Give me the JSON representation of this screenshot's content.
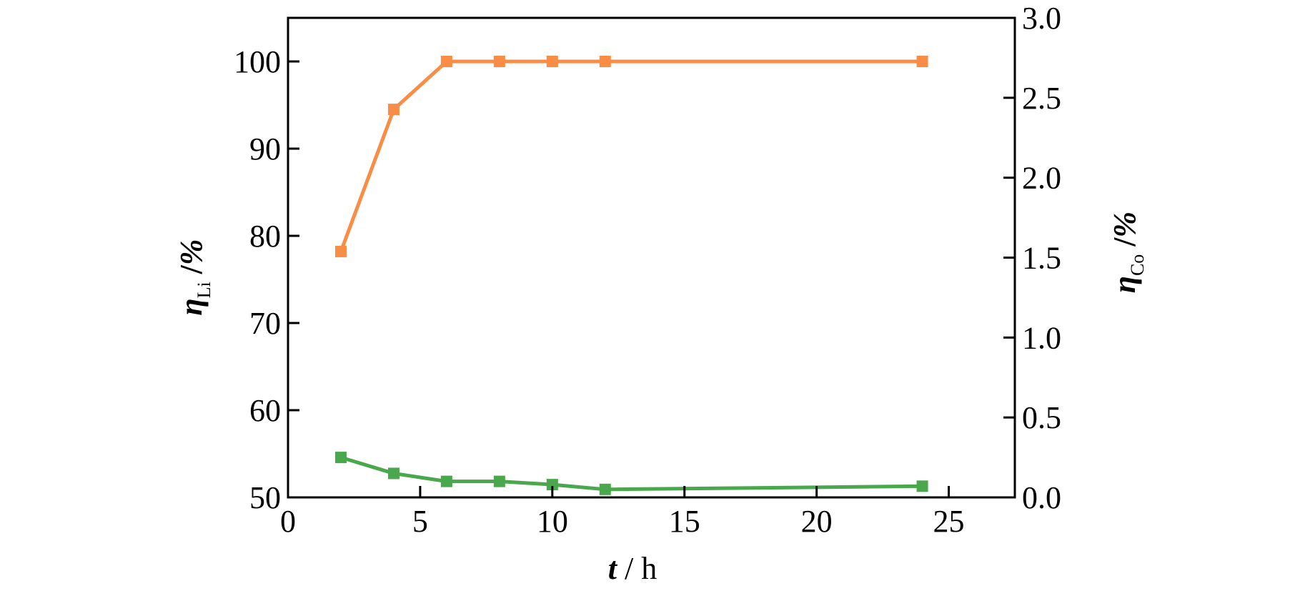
{
  "chart_data": {
    "type": "line",
    "title": "",
    "x": [
      2,
      4,
      6,
      8,
      10,
      12,
      24
    ],
    "xlim": [
      0,
      27.5
    ],
    "xticks": [
      0,
      5,
      10,
      15,
      20,
      25
    ],
    "xlabel": {
      "main": "t",
      "sep": " / ",
      "unit": "h"
    },
    "yleft": {
      "lim": [
        50,
        105
      ],
      "ticks": [
        50,
        60,
        70,
        80,
        90,
        100
      ],
      "label": {
        "symbol": "η",
        "sub": "Li",
        "sep": " /",
        "unit": "%"
      }
    },
    "yright": {
      "lim": [
        0,
        3.0
      ],
      "ticks": [
        "0.0",
        "0.5",
        "1.0",
        "1.5",
        "2.0",
        "2.5",
        "3.0"
      ],
      "label": {
        "symbol": "η",
        "sub": "Co",
        "sep": " /",
        "unit": "%"
      }
    },
    "series": [
      {
        "axis": "left",
        "color": "#f98d45",
        "marker": "square",
        "values": [
          78.2,
          94.5,
          100,
          100,
          100,
          100,
          100
        ]
      },
      {
        "axis": "right",
        "color": "#4aa84c",
        "marker": "square",
        "values": [
          0.25,
          0.15,
          0.1,
          0.1,
          0.08,
          0.05,
          0.07
        ]
      }
    ],
    "grid": false,
    "ticks_direction": "in"
  }
}
